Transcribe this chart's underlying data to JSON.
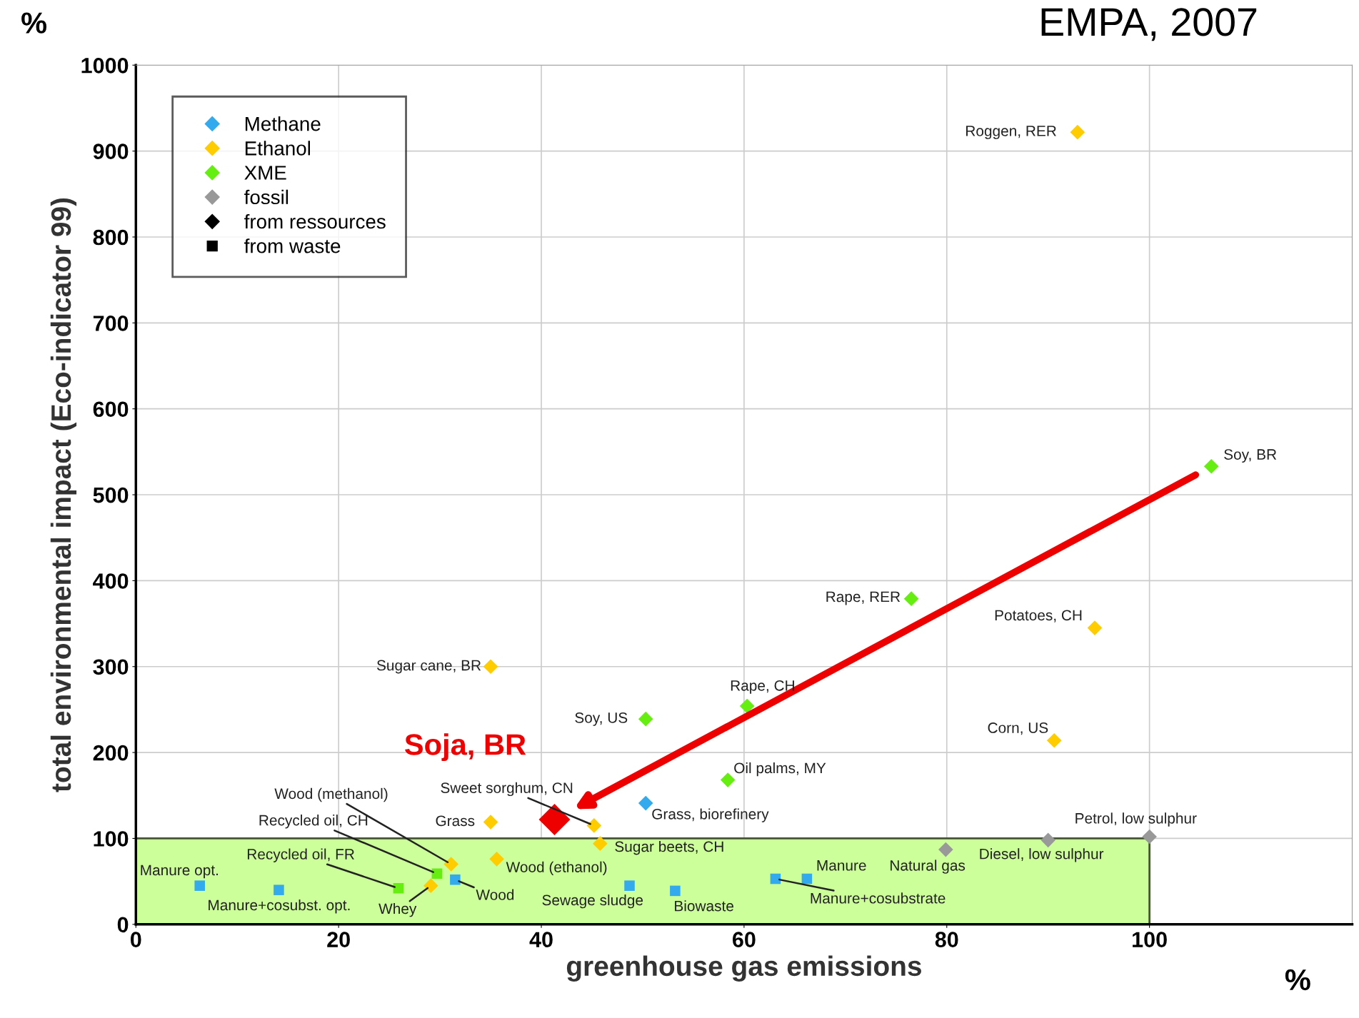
{
  "chart_data": {
    "type": "scatter",
    "xlabel": "greenhouse gas emissions",
    "ylabel": "total environmental impact (Eco-indicator 99)",
    "xlim": [
      0,
      120
    ],
    "ylim": [
      0,
      1000
    ],
    "xticks": [
      0,
      20,
      40,
      60,
      80,
      100
    ],
    "yticks": [
      0,
      100,
      200,
      300,
      400,
      500,
      600,
      700,
      800,
      900,
      1000
    ],
    "grid": true,
    "legend": "top left",
    "bands": [
      {
        "axis": "y",
        "from": 0,
        "to": 100,
        "color": "#ccff99"
      }
    ],
    "series": [
      {
        "name": "Methane",
        "color": "#33aaee",
        "marker": "diamond",
        "x": [
          50.3
        ],
        "values": [
          141
        ]
      },
      {
        "color": "#33aaee",
        "marker": "square",
        "x": [
          6.3,
          14.1,
          31.5,
          48.7,
          53.2,
          63.1,
          66.2
        ],
        "values": [
          45,
          40,
          52,
          45,
          39,
          53,
          53
        ]
      },
      {
        "name": "Ethanol",
        "color": "#ffcc00",
        "marker": "diamond",
        "x": [
          92.9,
          94.6,
          90.6,
          35.0,
          35.0,
          45.2,
          45.8,
          35.6,
          31.1,
          29.1
        ],
        "values": [
          922,
          345,
          214,
          300,
          119,
          115,
          94,
          76,
          70,
          45
        ]
      },
      {
        "name": "XME",
        "color": "#66ee11",
        "marker": "diamond",
        "x": [
          106.1,
          76.5,
          60.3,
          50.3,
          58.4
        ],
        "values": [
          533,
          379,
          254,
          239,
          168
        ]
      },
      {
        "color": "#66ee11",
        "marker": "square",
        "x": [
          29.7,
          25.9
        ],
        "values": [
          59,
          42
        ]
      },
      {
        "name": "fossil",
        "color": "#999999",
        "marker": "diamond",
        "x": [
          100,
          90,
          79.9
        ],
        "values": [
          102,
          98,
          87
        ]
      },
      {
        "name": "Soja, BR",
        "color": "#ee0000",
        "marker": "diamond",
        "x": [
          41.3
        ],
        "values": [
          122
        ]
      },
      {
        "name": "from ressources",
        "color": "#000000",
        "marker": "diamond"
      },
      {
        "name": "from waste",
        "color": "#000000",
        "marker": "square"
      }
    ],
    "annotations": [
      "%",
      "%",
      "EMPA, 2007",
      {
        "text": "Grass, biorefinery",
        "x": 50.3,
        "y": 141
      },
      {
        "text": "Manure opt.",
        "x": 6.3,
        "y": 45
      },
      {
        "text": "Manure+cosubst. opt.",
        "x": 14.1,
        "y": 40
      },
      {
        "text": "Wood",
        "x": 31.5,
        "y": 52
      },
      {
        "text": "Sewage sludge",
        "x": 48.7,
        "y": 45
      },
      {
        "text": "Biowaste",
        "x": 53.2,
        "y": 39
      },
      {
        "text": "Manure+cosubstrate",
        "x": 63.1,
        "y": 53
      },
      {
        "text": "Manure",
        "x": 66.2,
        "y": 53
      },
      {
        "text": "Roggen, RER",
        "x": 92.9,
        "y": 922
      },
      {
        "text": "Potatoes, CH",
        "x": 94.6,
        "y": 345
      },
      {
        "text": "Corn, US",
        "x": 90.6,
        "y": 214
      },
      {
        "text": "Sugar cane, BR",
        "x": 35.0,
        "y": 300
      },
      {
        "text": "Grass",
        "x": 35.0,
        "y": 119
      },
      {
        "text": "Sweet sorghum, CN",
        "x": 45.2,
        "y": 115
      },
      {
        "text": "Sugar beets, CH",
        "x": 45.8,
        "y": 94
      },
      {
        "text": "Wood (ethanol)",
        "x": 35.6,
        "y": 76
      },
      {
        "text": "Wood (methanol)",
        "x": 31.1,
        "y": 70
      },
      {
        "text": "Whey",
        "x": 29.1,
        "y": 45
      },
      {
        "text": "Soy, BR",
        "x": 106.1,
        "y": 533
      },
      {
        "text": "Rape, RER",
        "x": 76.5,
        "y": 379
      },
      {
        "text": "Rape, CH",
        "x": 60.3,
        "y": 254
      },
      {
        "text": "Soy, US",
        "x": 50.3,
        "y": 239
      },
      {
        "text": "Oil palms, MY",
        "x": 58.4,
        "y": 168
      },
      {
        "text": "Recycled oil, CH",
        "x": 29.7,
        "y": 59
      },
      {
        "text": "Recycled oil, FR",
        "x": 25.9,
        "y": 42
      },
      {
        "text": "Petrol, low sulphur",
        "x": 100,
        "y": 102
      },
      {
        "text": "Diesel, low sulphur",
        "x": 90,
        "y": 98
      },
      {
        "text": "Natural gas",
        "x": 79.9,
        "y": 87
      }
    ]
  }
}
